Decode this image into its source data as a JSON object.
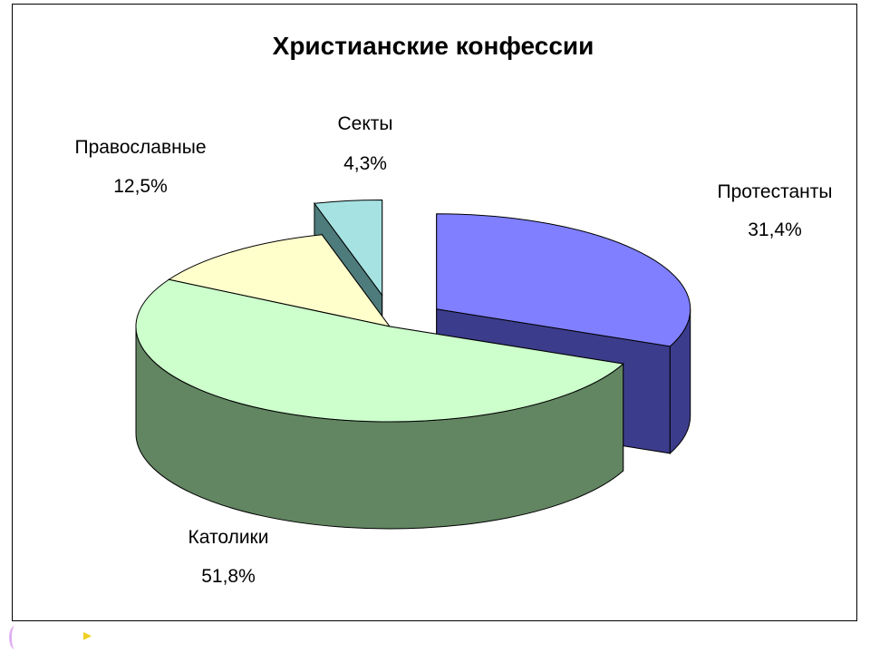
{
  "chart_data": {
    "type": "pie",
    "title": "Христианские конфессии",
    "slices": [
      {
        "label": "Протестанты",
        "value": 31.4,
        "value_label": "31,4%",
        "top_color": "#7f7fff",
        "side_color": "#3c3c8c",
        "exploded": true
      },
      {
        "label": "Католики",
        "value": 51.8,
        "value_label": "51,8%",
        "top_color": "#ccffcc",
        "side_color": "#628562",
        "exploded": false
      },
      {
        "label": "Православные",
        "value": 12.5,
        "value_label": "12,5%",
        "top_color": "#ffffcc",
        "side_color": "#8b8b6c",
        "exploded": false
      },
      {
        "label": "Секты",
        "value": 4.3,
        "value_label": "4,3%",
        "top_color": "#a6e2e2",
        "side_color": "#4e7b7b",
        "exploded": true
      }
    ],
    "style": "3d-exploded",
    "legend": "none"
  }
}
